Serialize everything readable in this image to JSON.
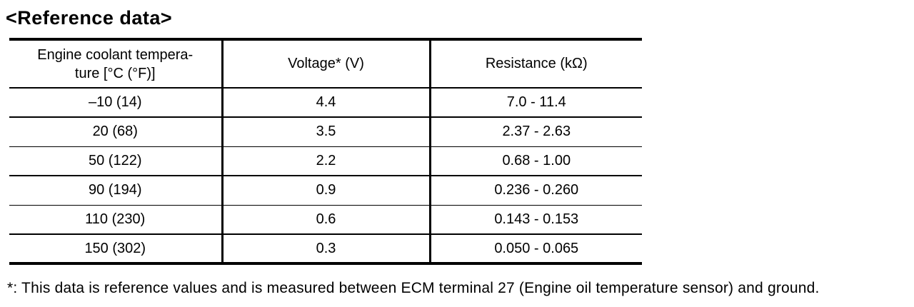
{
  "page": {
    "title": "<Reference data>",
    "footnote": "*: This data is reference values and is measured between ECM terminal 27 (Engine oil temperature sensor) and ground."
  },
  "table": {
    "headers": {
      "temperature": "Engine coolant tempera-\nture [°C (°F)]",
      "voltage": "Voltage* (V)",
      "resistance": "Resistance (kΩ)"
    },
    "rows": [
      {
        "temp": "–10 (14)",
        "voltage": "4.4",
        "resistance": "7.0 - 11.4"
      },
      {
        "temp": "20 (68)",
        "voltage": "3.5",
        "resistance": "2.37 - 2.63"
      },
      {
        "temp": "50 (122)",
        "voltage": "2.2",
        "resistance": "0.68 - 1.00"
      },
      {
        "temp": "90 (194)",
        "voltage": "0.9",
        "resistance": "0.236 - 0.260"
      },
      {
        "temp": "110 (230)",
        "voltage": "0.6",
        "resistance": "0.143 - 0.153"
      },
      {
        "temp": "150 (302)",
        "voltage": "0.3",
        "resistance": "0.050 - 0.065"
      }
    ]
  }
}
